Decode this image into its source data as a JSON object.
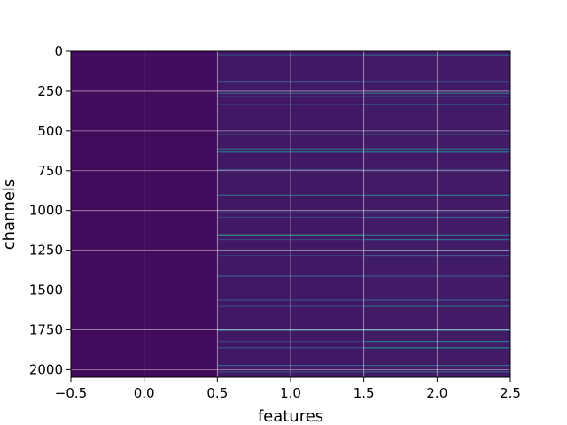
{
  "chart_data": {
    "type": "heatmap",
    "title": "",
    "xlabel": "features",
    "ylabel": "channels",
    "columns": [
      0,
      1,
      2
    ],
    "xlim": [
      -0.5,
      2.5
    ],
    "ylim": [
      2048,
      0
    ],
    "xticks": [
      -0.5,
      0.0,
      0.5,
      1.0,
      1.5,
      2.0,
      2.5
    ],
    "xtick_labels": [
      "−0.5",
      "0.0",
      "0.5",
      "1.0",
      "1.5",
      "2.0",
      "2.5"
    ],
    "yticks": [
      0,
      250,
      500,
      750,
      1000,
      1250,
      1500,
      1750,
      2000
    ],
    "ytick_labels": [
      "0",
      "250",
      "500",
      "750",
      "1000",
      "1250",
      "1500",
      "1750",
      "2000"
    ],
    "n_channels": 2048,
    "colormap": "viridis",
    "grid": true,
    "value_range": [
      0,
      1
    ],
    "column_baseline": [
      0.03,
      0.07,
      0.08
    ],
    "highlighted_channels": [
      {
        "channel": 20,
        "values": [
          0.06,
          0.22,
          0.3
        ]
      },
      {
        "channel": 190,
        "values": [
          0.04,
          0.25,
          0.22
        ]
      },
      {
        "channel": 260,
        "values": [
          0.05,
          0.3,
          0.38
        ]
      },
      {
        "channel": 280,
        "values": [
          0.04,
          0.18,
          0.2
        ]
      },
      {
        "channel": 330,
        "values": [
          0.03,
          0.22,
          0.4
        ]
      },
      {
        "channel": 520,
        "values": [
          0.04,
          0.28,
          0.3
        ]
      },
      {
        "channel": 610,
        "values": [
          0.05,
          0.32,
          0.35
        ]
      },
      {
        "channel": 630,
        "values": [
          0.03,
          0.4,
          0.42
        ]
      },
      {
        "channel": 740,
        "values": [
          0.04,
          0.26,
          0.2
        ]
      },
      {
        "channel": 900,
        "values": [
          0.03,
          0.35,
          0.38
        ]
      },
      {
        "channel": 1010,
        "values": [
          0.04,
          0.22,
          0.3
        ]
      },
      {
        "channel": 1040,
        "values": [
          0.05,
          0.2,
          0.34
        ]
      },
      {
        "channel": 1150,
        "values": [
          0.03,
          0.55,
          0.4
        ]
      },
      {
        "channel": 1180,
        "values": [
          0.04,
          0.2,
          0.36
        ]
      },
      {
        "channel": 1250,
        "values": [
          0.03,
          0.28,
          0.42
        ]
      },
      {
        "channel": 1280,
        "values": [
          0.04,
          0.18,
          0.25
        ]
      },
      {
        "channel": 1410,
        "values": [
          0.03,
          0.3,
          0.28
        ]
      },
      {
        "channel": 1560,
        "values": [
          0.04,
          0.24,
          0.3
        ]
      },
      {
        "channel": 1600,
        "values": [
          0.05,
          0.22,
          0.36
        ]
      },
      {
        "channel": 1750,
        "values": [
          0.04,
          0.45,
          0.45
        ]
      },
      {
        "channel": 1820,
        "values": [
          0.03,
          0.2,
          0.4
        ]
      },
      {
        "channel": 1860,
        "values": [
          0.04,
          0.25,
          0.48
        ]
      },
      {
        "channel": 1970,
        "values": [
          0.03,
          0.3,
          0.35
        ]
      },
      {
        "channel": 2010,
        "values": [
          0.04,
          0.22,
          0.3
        ]
      }
    ]
  }
}
